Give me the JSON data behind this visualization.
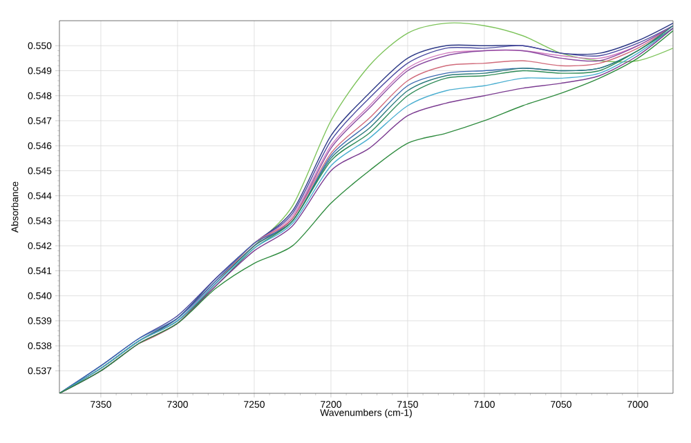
{
  "chart_data": {
    "type": "line",
    "xlabel": "Wavenumbers (cm-1)",
    "ylabel": "Absorbance",
    "x": [
      7377,
      7350,
      7325,
      7300,
      7275,
      7250,
      7225,
      7200,
      7175,
      7150,
      7125,
      7100,
      7075,
      7050,
      7025,
      7000,
      6977
    ],
    "xlim": [
      7377,
      6977
    ],
    "xticks": [
      7350,
      7300,
      7250,
      7200,
      7150,
      7100,
      7050,
      7000
    ],
    "ylim": [
      0.5361,
      0.551
    ],
    "yticks": [
      0.537,
      0.538,
      0.539,
      {
        "value": 0.54,
        "label": "0.540"
      },
      0.541,
      0.542,
      0.543,
      0.544,
      0.545,
      0.546,
      0.547,
      0.548,
      0.549,
      {
        "value": 0.55,
        "label": "0.550"
      }
    ],
    "grid": true,
    "series": [
      {
        "color": "#7dc35a",
        "values": [
          0.5361,
          0.5371,
          0.5382,
          0.5391,
          0.5406,
          0.542,
          0.5436,
          0.547,
          0.5492,
          0.5505,
          0.5509,
          0.5508,
          0.5504,
          0.5497,
          0.5494,
          0.5494,
          0.5499
        ]
      },
      {
        "color": "#2e3a87",
        "values": [
          0.5361,
          0.5371,
          0.5382,
          0.5391,
          0.5407,
          0.5421,
          0.5434,
          0.5464,
          0.5481,
          0.5495,
          0.55,
          0.55,
          0.55,
          0.5497,
          0.5497,
          0.5502,
          0.5509
        ]
      },
      {
        "color": "#4a4aa0",
        "values": [
          0.5361,
          0.5372,
          0.5383,
          0.5392,
          0.5407,
          0.5421,
          0.5433,
          0.5462,
          0.5479,
          0.5493,
          0.5499,
          0.5499,
          0.55,
          0.5497,
          0.5496,
          0.5501,
          0.5508
        ]
      },
      {
        "color": "#d07cc0",
        "values": [
          0.5361,
          0.5371,
          0.5382,
          0.539,
          0.5406,
          0.5421,
          0.5432,
          0.546,
          0.5476,
          0.5491,
          0.5497,
          0.5498,
          0.5498,
          0.5496,
          0.5495,
          0.55,
          0.5508
        ]
      },
      {
        "color": "#8a4aa0",
        "values": [
          0.5361,
          0.537,
          0.5381,
          0.5389,
          0.5405,
          0.542,
          0.5431,
          0.5459,
          0.5475,
          0.549,
          0.5496,
          0.5498,
          0.5498,
          0.5495,
          0.5494,
          0.55,
          0.5508
        ]
      },
      {
        "color": "#d06a7a",
        "values": [
          null,
          null,
          0.5381,
          0.5389,
          0.5405,
          0.5421,
          0.5431,
          0.5457,
          0.5471,
          0.5486,
          0.5492,
          0.5493,
          0.5494,
          0.5492,
          0.5493,
          0.5499,
          0.5508
        ]
      },
      {
        "color": "#3a6ab0",
        "values": [
          0.5361,
          0.5372,
          0.5383,
          0.5391,
          0.5406,
          0.5421,
          0.543,
          0.5456,
          0.5469,
          0.5484,
          0.5489,
          0.549,
          0.5491,
          0.549,
          0.5491,
          0.5498,
          0.5508
        ]
      },
      {
        "color": "#2a7a7a",
        "values": [
          0.5361,
          0.5371,
          0.5382,
          0.539,
          0.5405,
          0.542,
          0.543,
          0.5455,
          0.5467,
          0.5482,
          0.5488,
          0.5489,
          0.5491,
          0.549,
          0.5491,
          0.5498,
          0.5508
        ]
      },
      {
        "color": "#2e8b57",
        "values": [
          0.5361,
          0.5371,
          0.5382,
          0.539,
          0.5404,
          0.5419,
          0.543,
          0.5454,
          0.5465,
          0.548,
          0.5487,
          0.5488,
          0.549,
          0.5489,
          0.549,
          0.5498,
          0.5507
        ]
      },
      {
        "color": "#4aaed0",
        "values": [
          0.5361,
          0.5371,
          0.5382,
          0.539,
          0.5405,
          0.5419,
          0.5429,
          0.5452,
          0.5463,
          0.5476,
          0.5482,
          0.5484,
          0.5487,
          0.5487,
          0.5489,
          0.5497,
          0.5507
        ]
      },
      {
        "color": "#7a3a90",
        "values": [
          0.5361,
          0.537,
          0.5381,
          0.5389,
          0.5404,
          0.5418,
          0.5428,
          0.545,
          0.5459,
          0.5472,
          0.5477,
          0.548,
          0.5483,
          0.5485,
          0.5488,
          0.5496,
          0.5507
        ]
      },
      {
        "color": "#2e8b3e",
        "values": [
          0.5361,
          0.537,
          0.5381,
          0.5389,
          0.5403,
          0.5413,
          0.542,
          0.5437,
          0.545,
          0.5461,
          0.5465,
          0.547,
          0.5476,
          0.5481,
          0.5487,
          0.5495,
          0.5506
        ]
      }
    ]
  }
}
